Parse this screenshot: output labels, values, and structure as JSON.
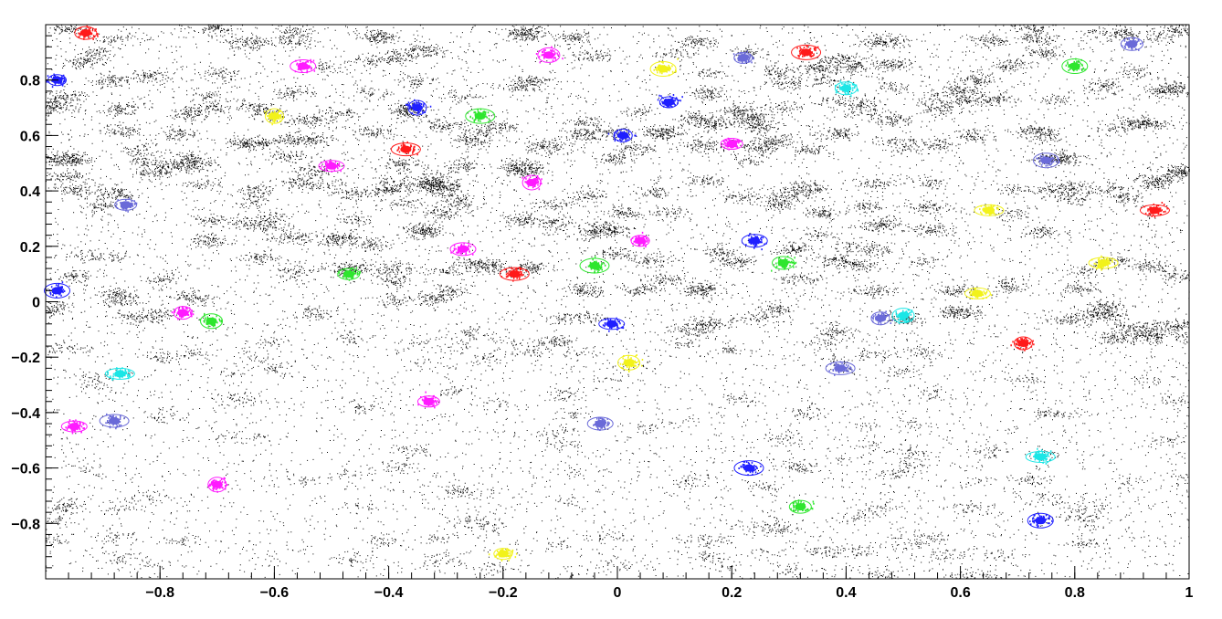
{
  "chart_data": {
    "type": "scatter",
    "title": "",
    "xlabel": "",
    "ylabel": "",
    "xlim": [
      -1,
      1
    ],
    "ylim": [
      -1,
      1
    ],
    "grid": false,
    "legend": "none",
    "x_ticks": [
      -0.8,
      -0.6,
      -0.4,
      -0.2,
      0,
      0.2,
      0.4,
      0.6,
      0.8,
      1
    ],
    "x_tick_labels": [
      "−0.8",
      "−0.6",
      "−0.4",
      "−0.2",
      "0",
      "0.2",
      "0.4",
      "0.6",
      "0.8",
      "1"
    ],
    "y_ticks": [
      0.8,
      0.6,
      0.4,
      0.2,
      0,
      -0.2,
      -0.4,
      -0.6,
      -0.8
    ],
    "y_tick_labels": [
      "0.8",
      "0.6",
      "0.4",
      "0.2",
      "0",
      "−0.2",
      "−0.4",
      "−0.6",
      "−0.8"
    ],
    "background_points": {
      "color": "#000000",
      "description_count": 60000
    },
    "colors": {
      "blue": "#1f1fff",
      "red": "#ff1a1a",
      "green": "#2ee62e",
      "magenta": "#ff1aff",
      "yellow": "#f2f21a",
      "cyan": "#1ae6e6",
      "slate": "#6a6ad8"
    },
    "clusters": [
      {
        "x": -0.98,
        "y": 0.8,
        "color": "blue"
      },
      {
        "x": -0.93,
        "y": 0.97,
        "color": "red"
      },
      {
        "x": -0.98,
        "y": 0.04,
        "color": "blue"
      },
      {
        "x": -0.87,
        "y": -0.26,
        "color": "cyan"
      },
      {
        "x": -0.76,
        "y": -0.04,
        "color": "magenta"
      },
      {
        "x": -0.71,
        "y": -0.07,
        "color": "green"
      },
      {
        "x": -0.95,
        "y": -0.45,
        "color": "magenta"
      },
      {
        "x": -0.88,
        "y": -0.43,
        "color": "slate"
      },
      {
        "x": -0.7,
        "y": -0.66,
        "color": "magenta"
      },
      {
        "x": -0.33,
        "y": -0.36,
        "color": "magenta"
      },
      {
        "x": -0.03,
        "y": -0.44,
        "color": "slate"
      },
      {
        "x": 0.23,
        "y": -0.6,
        "color": "blue"
      },
      {
        "x": -0.2,
        "y": -0.91,
        "color": "yellow"
      },
      {
        "x": 0.32,
        "y": -0.74,
        "color": "green"
      },
      {
        "x": 0.74,
        "y": -0.79,
        "color": "blue"
      },
      {
        "x": 0.74,
        "y": -0.56,
        "color": "cyan"
      },
      {
        "x": 0.71,
        "y": -0.15,
        "color": "red"
      },
      {
        "x": 0.02,
        "y": -0.22,
        "color": "yellow"
      },
      {
        "x": -0.01,
        "y": -0.08,
        "color": "blue"
      },
      {
        "x": -0.18,
        "y": 0.1,
        "color": "red"
      },
      {
        "x": -0.15,
        "y": 0.43,
        "color": "magenta"
      },
      {
        "x": 0.2,
        "y": 0.57,
        "color": "magenta"
      },
      {
        "x": 0.24,
        "y": 0.22,
        "color": "blue"
      },
      {
        "x": 0.33,
        "y": 0.9,
        "color": "red"
      },
      {
        "x": 0.22,
        "y": 0.88,
        "color": "slate"
      },
      {
        "x": 0.9,
        "y": 0.93,
        "color": "slate"
      },
      {
        "x": 0.75,
        "y": 0.51,
        "color": "slate"
      },
      {
        "x": 0.65,
        "y": 0.33,
        "color": "yellow"
      },
      {
        "x": 0.01,
        "y": 0.6,
        "color": "blue"
      },
      {
        "x": -0.12,
        "y": 0.89,
        "color": "magenta"
      },
      {
        "x": -0.5,
        "y": 0.49,
        "color": "magenta"
      },
      {
        "x": -0.37,
        "y": 0.55,
        "color": "red"
      },
      {
        "x": -0.35,
        "y": 0.7,
        "color": "blue"
      },
      {
        "x": -0.47,
        "y": 0.1,
        "color": "green"
      },
      {
        "x": -0.27,
        "y": 0.19,
        "color": "magenta"
      },
      {
        "x": -0.04,
        "y": 0.13,
        "color": "green"
      },
      {
        "x": 0.09,
        "y": 0.72,
        "color": "blue"
      },
      {
        "x": 0.4,
        "y": 0.77,
        "color": "cyan"
      },
      {
        "x": 0.8,
        "y": 0.85,
        "color": "green"
      },
      {
        "x": 0.94,
        "y": 0.33,
        "color": "red"
      },
      {
        "x": 0.46,
        "y": -0.06,
        "color": "slate"
      },
      {
        "x": 0.5,
        "y": -0.05,
        "color": "cyan"
      },
      {
        "x": 0.63,
        "y": 0.03,
        "color": "yellow"
      },
      {
        "x": 0.39,
        "y": -0.24,
        "color": "slate"
      },
      {
        "x": -0.6,
        "y": 0.67,
        "color": "yellow"
      },
      {
        "x": -0.86,
        "y": 0.35,
        "color": "slate"
      },
      {
        "x": -0.55,
        "y": 0.85,
        "color": "magenta"
      },
      {
        "x": -0.24,
        "y": 0.67,
        "color": "green"
      },
      {
        "x": 0.04,
        "y": 0.22,
        "color": "magenta"
      },
      {
        "x": 0.29,
        "y": 0.14,
        "color": "green"
      },
      {
        "x": 0.08,
        "y": 0.84,
        "color": "yellow"
      },
      {
        "x": 0.85,
        "y": 0.14,
        "color": "yellow"
      }
    ]
  }
}
